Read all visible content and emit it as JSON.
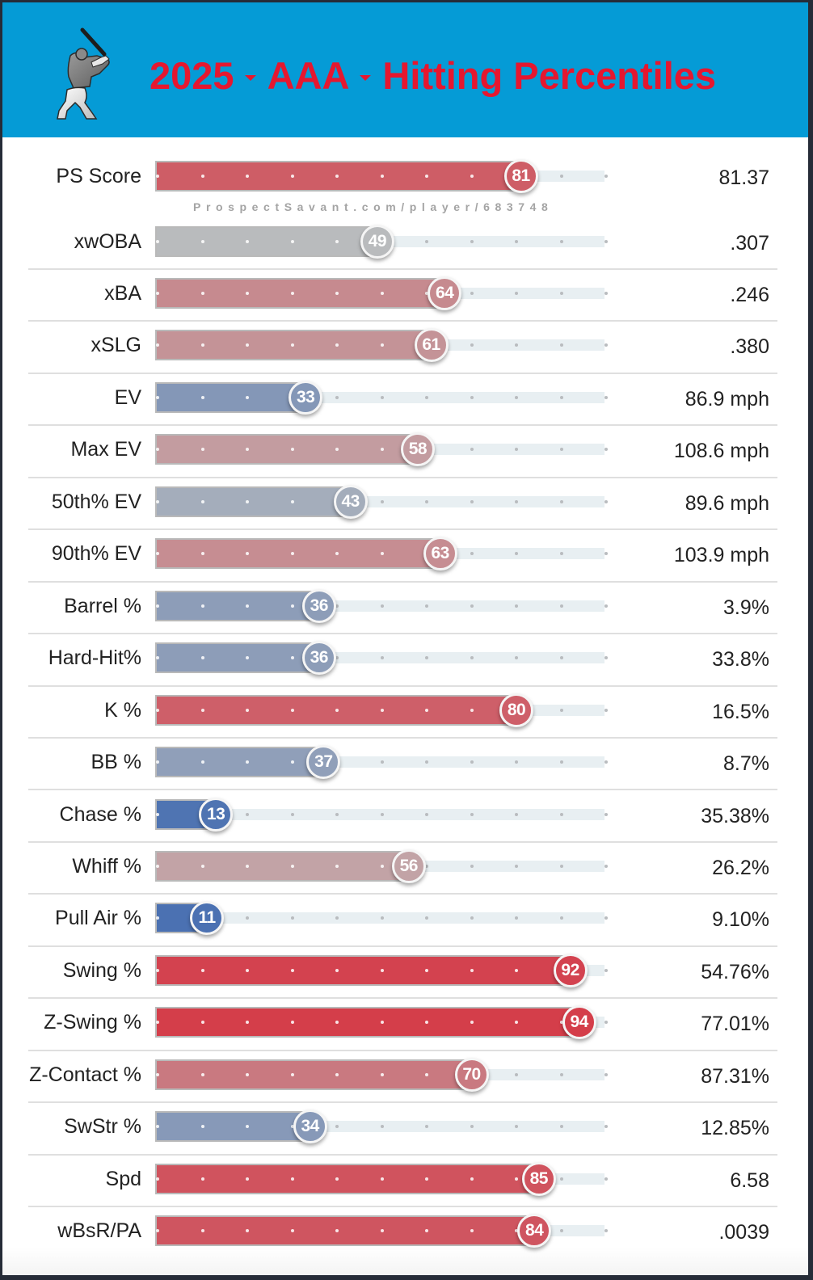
{
  "header": {
    "season": "2025",
    "level": "AAA",
    "title": "Hitting Percentiles",
    "logo_icon": "baseball-batter-icon",
    "title_color": "#e5172f",
    "background_color": "#059bd6"
  },
  "watermark": "ProspectSavant.com/player/683748",
  "chart_data": {
    "type": "bar",
    "title": "2025 AAA Hitting Percentiles",
    "xlabel": "Percentile",
    "ylabel": "",
    "xlim": [
      0,
      100
    ],
    "grid": "dots every 10 percentile points",
    "color_scale": {
      "low": "#3b67b0",
      "mid": "#bdbdbd",
      "high": "#d6303e"
    },
    "categories": [
      "PS Score",
      "xwOBA",
      "xBA",
      "xSLG",
      "EV",
      "Max EV",
      "50th% EV",
      "90th% EV",
      "Barrel %",
      "Hard-Hit%",
      "K %",
      "BB %",
      "Chase %",
      "Whiff %",
      "Pull Air %",
      "Swing %",
      "Z-Swing %",
      "Z-Contact %",
      "SwStr %",
      "Spd",
      "wBsR/PA"
    ],
    "values": [
      81,
      49,
      64,
      61,
      33,
      58,
      43,
      63,
      36,
      36,
      80,
      37,
      13,
      56,
      11,
      92,
      94,
      70,
      34,
      85,
      84
    ],
    "stat_values": [
      "81.37",
      ".307",
      ".246",
      ".380",
      "86.9 mph",
      "108.6 mph",
      "89.6 mph",
      "103.9 mph",
      "3.9%",
      "33.8%",
      "16.5%",
      "8.7%",
      "35.38%",
      "26.2%",
      "9.10%",
      "54.76%",
      "77.01%",
      "87.31%",
      "12.85%",
      "6.58",
      ".0039"
    ]
  }
}
